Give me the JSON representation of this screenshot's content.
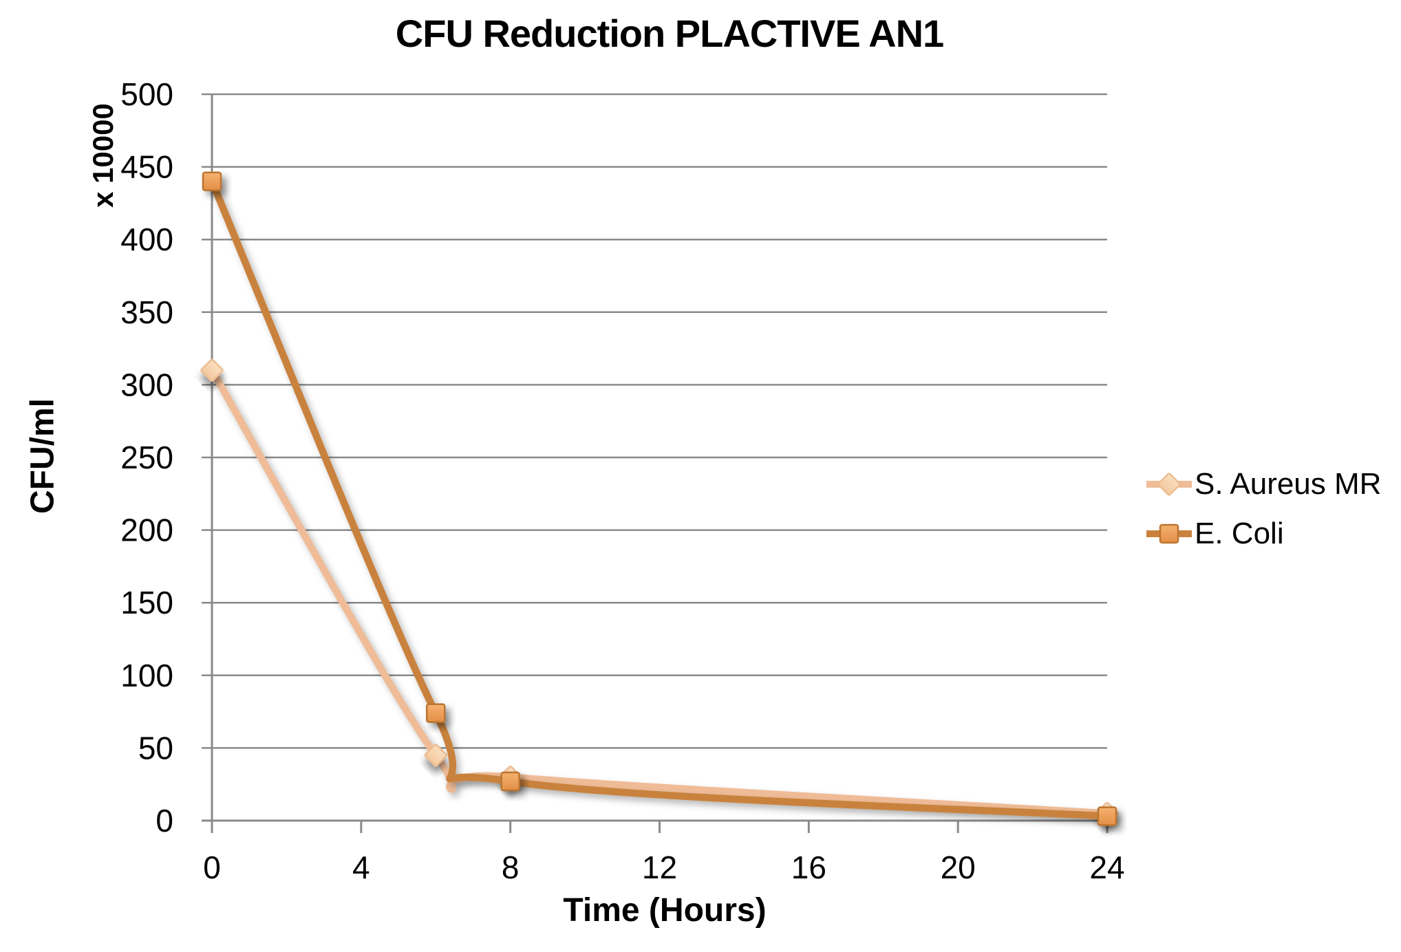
{
  "chart_data": {
    "type": "line",
    "title": "CFU Reduction PLACTIVE AN1",
    "xlabel": "Time (Hours)",
    "ylabel": "CFU/ml",
    "y_display_unit": "x 10000",
    "xlim": [
      0,
      24
    ],
    "ylim": [
      0,
      500
    ],
    "x_ticks": [
      0,
      4,
      8,
      12,
      16,
      20,
      24
    ],
    "y_ticks": [
      0,
      50,
      100,
      150,
      200,
      250,
      300,
      350,
      400,
      450,
      500
    ],
    "grid": true,
    "line_style": "smooth",
    "legend_position": "right",
    "series": [
      {
        "name": "S. Aureus MR",
        "marker": "diamond",
        "x": [
          0,
          6,
          8,
          24
        ],
        "values": [
          310,
          45,
          30,
          5
        ],
        "line_color": "#EFBC97",
        "marker_fill_light": "#FADFC0",
        "marker_fill_dark": "#F3C99F",
        "marker_stroke": "#ECBD92"
      },
      {
        "name": "E. Coli",
        "marker": "square",
        "x": [
          0,
          6,
          8,
          24
        ],
        "values": [
          440,
          74,
          27,
          3
        ],
        "line_color": "#C9823E",
        "marker_fill_light": "#F5B170",
        "marker_fill_dark": "#E28F47",
        "marker_stroke": "#BC752F"
      }
    ],
    "colors": {
      "grid": "#8A8A8A",
      "axis": "#8A8A8A",
      "text": "#000000",
      "background": "#FFFFFF"
    }
  }
}
